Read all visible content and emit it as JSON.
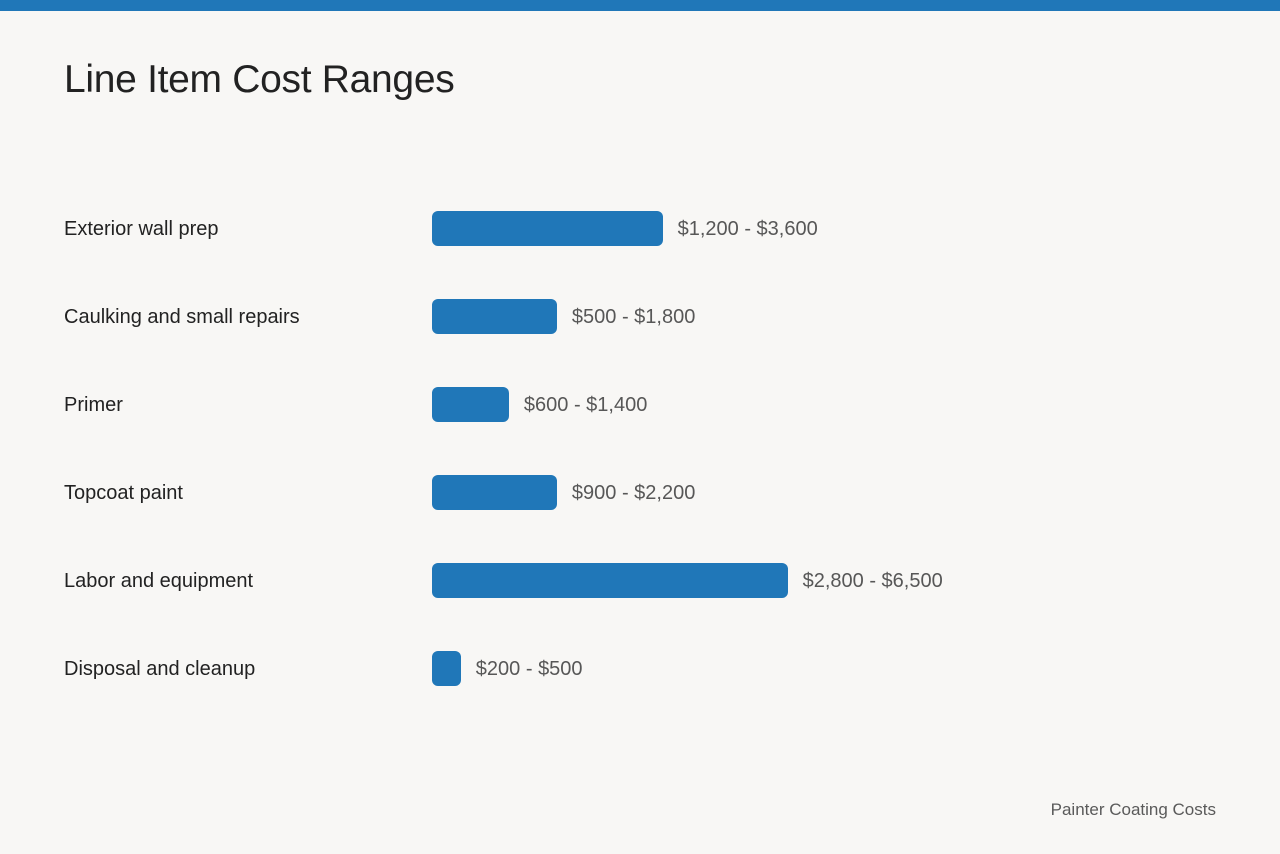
{
  "title": "Line Item Cost Ranges",
  "source": "Painter Coating Costs",
  "colors": {
    "accent": "#2077b8",
    "bar": "#2077b8",
    "background": "#f8f7f5",
    "label_text": "#222222",
    "value_text": "#575757"
  },
  "chart_data": {
    "type": "bar",
    "orientation": "horizontal",
    "title": "Line Item Cost Ranges",
    "xlabel": "",
    "ylabel": "",
    "grid": false,
    "legend": "none",
    "categories": [
      "Exterior wall prep",
      "Caulking and small repairs",
      "Primer",
      "Topcoat paint",
      "Labor and equipment",
      "Disposal and cleanup"
    ],
    "range_labels": [
      "$1,200 - $3,600",
      "$500 - $1,800",
      "$600 - $1,400",
      "$900 - $2,200",
      "$2,800 - $6,500",
      "$200 - $500"
    ],
    "series": [
      {
        "values": [
          1200,
          500,
          600,
          900,
          2800,
          200
        ]
      },
      {
        "values": [
          3600,
          1800,
          1400,
          2200,
          6500,
          500
        ]
      }
    ]
  }
}
